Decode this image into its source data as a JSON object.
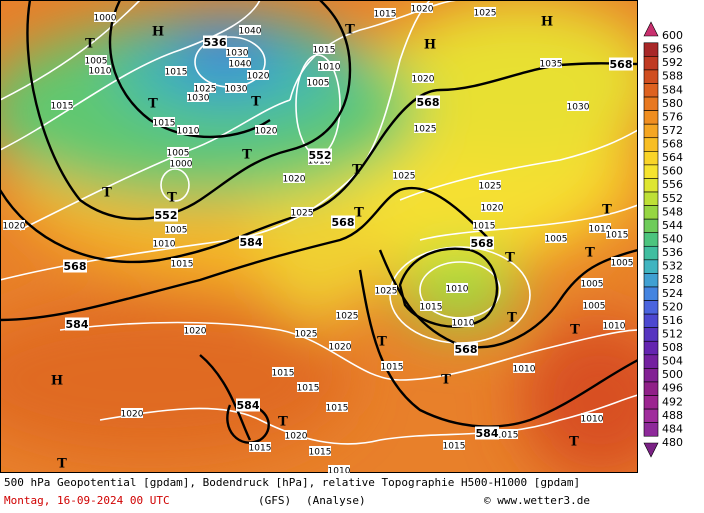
{
  "map": {
    "isobar_labels": [
      "1000",
      "1005",
      "1010",
      "1015",
      "1015",
      "1040",
      "1030",
      "1040",
      "1020",
      "1025",
      "1030",
      "1030",
      "1015",
      "1010",
      "1005",
      "1000",
      "1020",
      "1015",
      "1010",
      "1005",
      "1010",
      "1020",
      "1015",
      "1020",
      "1025",
      "1020",
      "1025",
      "1035",
      "1030",
      "1025",
      "1025",
      "1020",
      "1025",
      "1015",
      "1005",
      "1010",
      "1015",
      "1005",
      "1025",
      "1010",
      "1015",
      "1010",
      "1005",
      "1005",
      "1010",
      "1020",
      "1010",
      "1015",
      "1025",
      "1025",
      "1020",
      "1020",
      "1015",
      "1015",
      "1015",
      "1015",
      "1020",
      "1020",
      "1015",
      "1015",
      "1015",
      "1015",
      "1010",
      "1010",
      "1010",
      "1005"
    ],
    "height_labels": [
      "536",
      "552",
      "552",
      "568",
      "568",
      "568",
      "568",
      "568",
      "584",
      "584",
      "584",
      "584",
      "568"
    ],
    "pressure_centers": [
      "T",
      "T",
      "T",
      "T",
      "T",
      "T",
      "T",
      "T",
      "T",
      "T",
      "T",
      "T",
      "T",
      "T",
      "T",
      "T",
      "T",
      "T",
      "T",
      "H",
      "H",
      "H",
      "H"
    ]
  },
  "colorbar": {
    "levels": [
      600,
      596,
      592,
      588,
      584,
      580,
      576,
      572,
      568,
      564,
      560,
      556,
      552,
      548,
      544,
      540,
      536,
      532,
      528,
      524,
      520,
      516,
      512,
      508,
      504,
      500,
      496,
      492,
      488,
      484,
      480
    ],
    "colors": [
      "#c8306e",
      "#a82828",
      "#c03a22",
      "#d04e20",
      "#de6220",
      "#e87820",
      "#f08e20",
      "#f5a622",
      "#f8be24",
      "#f9d428",
      "#f6e42e",
      "#dee632",
      "#bee036",
      "#96d642",
      "#6ecc5a",
      "#4cc47e",
      "#40bea0",
      "#40b4c0",
      "#40a0d2",
      "#4484e0",
      "#4a64de",
      "#4c48d0",
      "#5634c0",
      "#6424b0",
      "#7420a0",
      "#822094",
      "#902088",
      "#9c2490",
      "#a02c9c",
      "#8e2a9a",
      "#7a2284"
    ]
  },
  "footer": {
    "description": "500 hPa Geopotential [gpdam], Bodendruck [hPa], relative Topographie H500-H1000 [gpdam]",
    "date": "Montag, 16-09-2024  00 UTC",
    "model": "(GFS)",
    "mode": "(Analyse)",
    "copyright": "© www.wetter3.de"
  }
}
